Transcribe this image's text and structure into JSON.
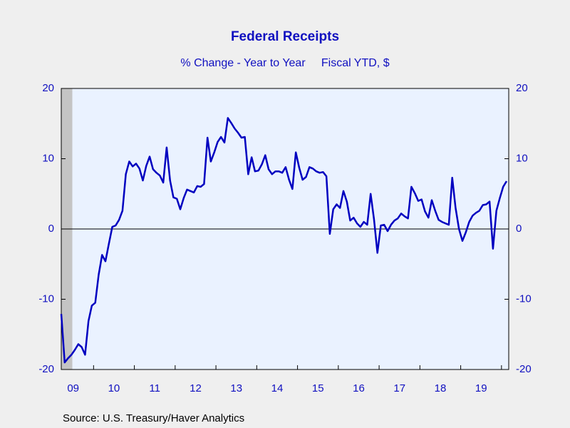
{
  "chart_data": {
    "type": "line",
    "title": "Federal Receipts",
    "subtitle": "% Change - Year to Year     Fiscal YTD, $",
    "source": "Source:  U.S. Treasury/Haver Analytics",
    "categories": [
      null,
      null,
      null,
      "09",
      null,
      null,
      null,
      null,
      null,
      null,
      null,
      null,
      null,
      null,
      null,
      "10",
      null,
      null,
      null,
      null,
      null,
      null,
      null,
      null,
      null,
      null,
      null,
      "11",
      null,
      null,
      null,
      null,
      null,
      null,
      null,
      null,
      null,
      null,
      null,
      "12",
      null,
      null,
      null,
      null,
      null,
      null,
      null,
      null,
      null,
      null,
      null,
      "13",
      null,
      null,
      null,
      null,
      null,
      null,
      null,
      null,
      null,
      null,
      null,
      "14",
      null,
      null,
      null,
      null,
      null,
      null,
      null,
      null,
      null,
      null,
      null,
      "15",
      null,
      null,
      null,
      null,
      null,
      null,
      null,
      null,
      null,
      null,
      null,
      "16",
      null,
      null,
      null,
      null,
      null,
      null,
      null,
      null,
      null,
      null,
      null,
      "17",
      null,
      null,
      null,
      null,
      null,
      null,
      null,
      null,
      null,
      null,
      null,
      "18",
      null,
      null,
      null,
      null,
      null,
      null,
      null,
      null,
      null,
      null,
      null,
      "19",
      null,
      null,
      null,
      null,
      null,
      null,
      null,
      null
    ],
    "series": [
      {
        "name": "Federal Receipts",
        "color": "#0000c0",
        "values": [
          -12.1,
          -19.0,
          -18.4,
          -17.9,
          -17.2,
          -16.4,
          -16.8,
          -17.9,
          -13.1,
          -10.9,
          -10.5,
          -6.5,
          -3.7,
          -4.6,
          -2.1,
          0.3,
          0.5,
          1.3,
          2.6,
          7.8,
          9.6,
          8.9,
          9.3,
          8.6,
          6.9,
          9.0,
          10.3,
          8.5,
          8.0,
          7.6,
          6.6,
          11.6,
          6.9,
          4.5,
          4.3,
          2.8,
          4.4,
          5.6,
          5.4,
          5.2,
          6.1,
          6.0,
          6.4,
          13.0,
          9.6,
          10.9,
          12.4,
          13.1,
          12.3,
          15.8,
          15.1,
          14.3,
          13.7,
          13.0,
          13.1,
          7.8,
          10.2,
          8.2,
          8.3,
          9.2,
          10.5,
          8.5,
          7.8,
          8.2,
          8.2,
          8.0,
          8.8,
          7.0,
          5.7,
          10.9,
          8.7,
          7.0,
          7.4,
          8.8,
          8.6,
          8.2,
          8.0,
          8.1,
          7.5,
          -0.7,
          2.8,
          3.5,
          3.0,
          5.4,
          3.9,
          1.2,
          1.6,
          0.8,
          0.3,
          1.0,
          0.6,
          5.0,
          1.4,
          -3.4,
          0.5,
          0.6,
          -0.3,
          0.6,
          1.2,
          1.5,
          2.2,
          1.8,
          1.5,
          6.0,
          5.1,
          4.0,
          4.2,
          2.5,
          1.6,
          4.1,
          2.6,
          1.3,
          1.0,
          0.8,
          0.6,
          7.3,
          3.0,
          0.0,
          -1.7,
          -0.5,
          1.0,
          1.9,
          2.3,
          2.6,
          3.4,
          3.5,
          3.9,
          -2.8,
          2.6,
          4.4,
          6.0,
          6.8
        ]
      }
    ],
    "ylim": [
      -20,
      20
    ],
    "yticks": [
      -20,
      -10,
      0,
      10,
      20
    ],
    "y2lim": [
      -20,
      20
    ],
    "y2ticks": [
      -20,
      -10,
      0,
      10,
      20
    ],
    "grid": false
  }
}
